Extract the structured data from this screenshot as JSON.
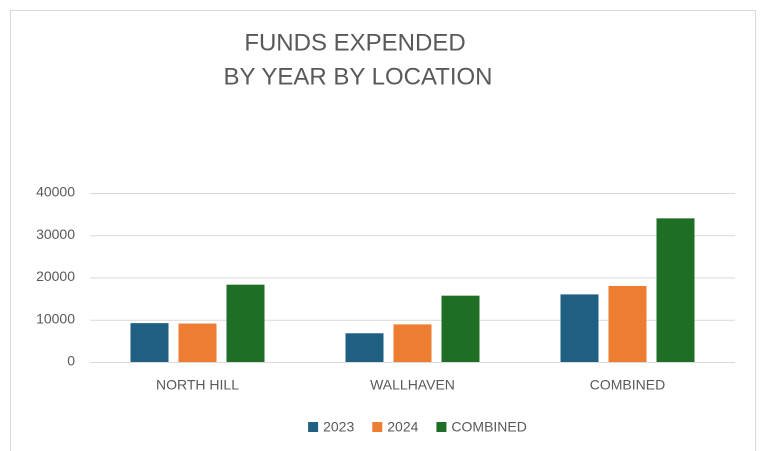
{
  "chart_data": {
    "type": "bar",
    "title": [
      "FUNDS EXPENDED",
      "BY YEAR BY LOCATION"
    ],
    "categories": [
      "NORTH HILL",
      "WALLHAVEN",
      "COMBINED"
    ],
    "series": [
      {
        "name": "2023",
        "color": "#1f5f82",
        "values": [
          9200,
          6800,
          16000
        ]
      },
      {
        "name": "2024",
        "color": "#ed7d31",
        "values": [
          9100,
          8900,
          18000
        ]
      },
      {
        "name": "COMBINED",
        "color": "#1e6e26",
        "values": [
          18300,
          15700,
          34000
        ]
      }
    ],
    "ylim": [
      0,
      40000
    ],
    "yticks": [
      0,
      10000,
      20000,
      30000,
      40000
    ],
    "grid": true,
    "legend": "bottom"
  }
}
